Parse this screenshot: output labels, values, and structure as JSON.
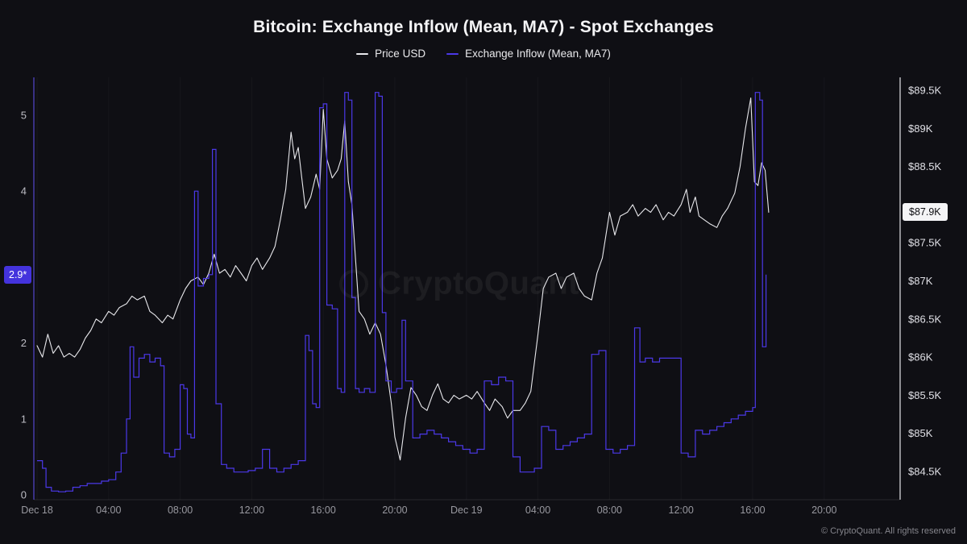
{
  "page": {
    "title": "Bitcoin: Exchange Inflow (Mean, MA7) - Spot Exchanges",
    "watermark": "CryptoQuant",
    "copyright": "© CryptoQuant. All rights reserved",
    "background": "#0f0f14"
  },
  "legend": {
    "items": [
      {
        "label": "Price USD",
        "color": "#e8e8ec"
      },
      {
        "label": "Exchange Inflow (Mean, MA7)",
        "color": "#4b38e8"
      }
    ]
  },
  "chart_data": {
    "type": "line",
    "title": "Bitcoin: Exchange Inflow (Mean, MA7) - Spot Exchanges",
    "grid": "off",
    "legend_position": "top-center",
    "x_axis": {
      "unit": "hours since Dec 18 00:00",
      "range": [
        0,
        48.2
      ],
      "ticks": [
        {
          "t": 0,
          "label": "Dec 18"
        },
        {
          "t": 4,
          "label": "04:00"
        },
        {
          "t": 8,
          "label": "08:00"
        },
        {
          "t": 12,
          "label": "12:00"
        },
        {
          "t": 16,
          "label": "16:00"
        },
        {
          "t": 20,
          "label": "20:00"
        },
        {
          "t": 24,
          "label": "Dec 19"
        },
        {
          "t": 28,
          "label": "04:00"
        },
        {
          "t": 32,
          "label": "08:00"
        },
        {
          "t": 36,
          "label": "12:00"
        },
        {
          "t": 40,
          "label": "16:00"
        },
        {
          "t": 44,
          "label": "20:00"
        }
      ]
    },
    "left_axis": {
      "title": "Exchange Inflow (Mean, MA7)",
      "range": [
        0,
        5.5
      ],
      "ticks": [
        0,
        1,
        2,
        4,
        5
      ],
      "current_value": 2.9,
      "current_label": "2.9*",
      "badge_color": "#4433dd"
    },
    "right_axis": {
      "title": "Price USD",
      "range_kusd": [
        84.3,
        89.7
      ],
      "ticks": [
        {
          "v": 84.5,
          "label": "$84.5K"
        },
        {
          "v": 85.0,
          "label": "$85K"
        },
        {
          "v": 85.5,
          "label": "$85.5K"
        },
        {
          "v": 86.0,
          "label": "$86K"
        },
        {
          "v": 86.5,
          "label": "$86.5K"
        },
        {
          "v": 87.0,
          "label": "$87K"
        },
        {
          "v": 87.5,
          "label": "$87.5K"
        },
        {
          "v": 88.5,
          "label": "$88.5K"
        },
        {
          "v": 89.0,
          "label": "$89K"
        },
        {
          "v": 89.5,
          "label": "$89.5K"
        }
      ],
      "current_value": 87.9,
      "current_label": "$87.9K"
    },
    "series": [
      {
        "name": "Price USD",
        "axis": "right",
        "unit": "kUSD",
        "color": "#e8e8ec",
        "style": "line",
        "points": [
          [
            0,
            86.15
          ],
          [
            0.3,
            86.0
          ],
          [
            0.6,
            86.3
          ],
          [
            0.9,
            86.05
          ],
          [
            1.2,
            86.15
          ],
          [
            1.5,
            86.0
          ],
          [
            1.8,
            86.05
          ],
          [
            2.1,
            86.0
          ],
          [
            2.4,
            86.1
          ],
          [
            2.7,
            86.25
          ],
          [
            3.0,
            86.35
          ],
          [
            3.3,
            86.5
          ],
          [
            3.6,
            86.45
          ],
          [
            4.0,
            86.6
          ],
          [
            4.3,
            86.55
          ],
          [
            4.6,
            86.65
          ],
          [
            5.0,
            86.7
          ],
          [
            5.3,
            86.8
          ],
          [
            5.6,
            86.75
          ],
          [
            6.0,
            86.8
          ],
          [
            6.3,
            86.6
          ],
          [
            6.6,
            86.55
          ],
          [
            7.0,
            86.45
          ],
          [
            7.3,
            86.55
          ],
          [
            7.6,
            86.5
          ],
          [
            8.0,
            86.75
          ],
          [
            8.3,
            86.9
          ],
          [
            8.6,
            87.0
          ],
          [
            9.0,
            87.05
          ],
          [
            9.3,
            86.95
          ],
          [
            9.6,
            87.1
          ],
          [
            9.9,
            87.35
          ],
          [
            10.2,
            87.1
          ],
          [
            10.5,
            87.15
          ],
          [
            10.8,
            87.05
          ],
          [
            11.1,
            87.2
          ],
          [
            11.4,
            87.1
          ],
          [
            11.7,
            87.0
          ],
          [
            12.0,
            87.2
          ],
          [
            12.3,
            87.3
          ],
          [
            12.6,
            87.15
          ],
          [
            13.0,
            87.3
          ],
          [
            13.3,
            87.45
          ],
          [
            13.6,
            87.8
          ],
          [
            13.9,
            88.2
          ],
          [
            14.2,
            88.95
          ],
          [
            14.4,
            88.6
          ],
          [
            14.6,
            88.75
          ],
          [
            14.8,
            88.35
          ],
          [
            15.0,
            87.95
          ],
          [
            15.3,
            88.1
          ],
          [
            15.6,
            88.4
          ],
          [
            15.8,
            88.2
          ],
          [
            16.0,
            89.25
          ],
          [
            16.2,
            88.6
          ],
          [
            16.5,
            88.35
          ],
          [
            16.8,
            88.45
          ],
          [
            17.0,
            88.6
          ],
          [
            17.2,
            89.1
          ],
          [
            17.4,
            88.3
          ],
          [
            17.6,
            88.0
          ],
          [
            17.8,
            87.3
          ],
          [
            18.0,
            86.6
          ],
          [
            18.3,
            86.5
          ],
          [
            18.6,
            86.3
          ],
          [
            18.9,
            86.45
          ],
          [
            19.2,
            86.3
          ],
          [
            19.5,
            85.9
          ],
          [
            19.8,
            85.4
          ],
          [
            20.0,
            84.95
          ],
          [
            20.3,
            84.65
          ],
          [
            20.6,
            85.2
          ],
          [
            20.9,
            85.6
          ],
          [
            21.2,
            85.5
          ],
          [
            21.5,
            85.35
          ],
          [
            21.8,
            85.3
          ],
          [
            22.1,
            85.5
          ],
          [
            22.4,
            85.65
          ],
          [
            22.7,
            85.45
          ],
          [
            23.0,
            85.4
          ],
          [
            23.3,
            85.5
          ],
          [
            23.6,
            85.45
          ],
          [
            24.0,
            85.5
          ],
          [
            24.3,
            85.45
          ],
          [
            24.6,
            85.55
          ],
          [
            25.0,
            85.4
          ],
          [
            25.3,
            85.3
          ],
          [
            25.6,
            85.45
          ],
          [
            26.0,
            85.35
          ],
          [
            26.3,
            85.2
          ],
          [
            26.6,
            85.3
          ],
          [
            27.0,
            85.3
          ],
          [
            27.3,
            85.4
          ],
          [
            27.6,
            85.55
          ],
          [
            28.0,
            86.3
          ],
          [
            28.3,
            86.9
          ],
          [
            28.6,
            87.05
          ],
          [
            29.0,
            87.1
          ],
          [
            29.3,
            86.9
          ],
          [
            29.6,
            87.05
          ],
          [
            30.0,
            87.1
          ],
          [
            30.3,
            86.9
          ],
          [
            30.6,
            86.8
          ],
          [
            31.0,
            86.75
          ],
          [
            31.3,
            87.1
          ],
          [
            31.6,
            87.3
          ],
          [
            32.0,
            87.9
          ],
          [
            32.3,
            87.6
          ],
          [
            32.6,
            87.85
          ],
          [
            33.0,
            87.9
          ],
          [
            33.3,
            88.0
          ],
          [
            33.6,
            87.85
          ],
          [
            34.0,
            87.95
          ],
          [
            34.3,
            87.9
          ],
          [
            34.6,
            88.0
          ],
          [
            35.0,
            87.8
          ],
          [
            35.3,
            87.9
          ],
          [
            35.6,
            87.85
          ],
          [
            36.0,
            88.0
          ],
          [
            36.3,
            88.2
          ],
          [
            36.5,
            87.9
          ],
          [
            36.8,
            88.1
          ],
          [
            37.0,
            87.85
          ],
          [
            37.3,
            87.8
          ],
          [
            37.6,
            87.75
          ],
          [
            38.0,
            87.7
          ],
          [
            38.3,
            87.85
          ],
          [
            38.6,
            87.95
          ],
          [
            39.0,
            88.15
          ],
          [
            39.3,
            88.5
          ],
          [
            39.6,
            89.0
          ],
          [
            39.9,
            89.4
          ],
          [
            40.1,
            88.3
          ],
          [
            40.3,
            88.25
          ],
          [
            40.5,
            88.55
          ],
          [
            40.7,
            88.45
          ],
          [
            40.9,
            87.9
          ]
        ]
      },
      {
        "name": "Exchange Inflow (Mean, MA7)",
        "axis": "left",
        "unit": "BTC",
        "color": "#4b38e8",
        "style": "step",
        "points": [
          [
            0,
            0.45
          ],
          [
            0.3,
            0.35
          ],
          [
            0.5,
            0.1
          ],
          [
            0.8,
            0.05
          ],
          [
            1.2,
            0.04
          ],
          [
            1.6,
            0.05
          ],
          [
            2.0,
            0.1
          ],
          [
            2.4,
            0.12
          ],
          [
            2.8,
            0.15
          ],
          [
            3.2,
            0.15
          ],
          [
            3.6,
            0.18
          ],
          [
            4.0,
            0.2
          ],
          [
            4.4,
            0.3
          ],
          [
            4.7,
            0.55
          ],
          [
            5.0,
            1.0
          ],
          [
            5.2,
            1.95
          ],
          [
            5.4,
            1.55
          ],
          [
            5.7,
            1.8
          ],
          [
            6.0,
            1.85
          ],
          [
            6.3,
            1.75
          ],
          [
            6.6,
            1.8
          ],
          [
            6.9,
            1.7
          ],
          [
            7.1,
            0.55
          ],
          [
            7.4,
            0.5
          ],
          [
            7.7,
            0.6
          ],
          [
            8.0,
            1.45
          ],
          [
            8.2,
            1.4
          ],
          [
            8.4,
            0.8
          ],
          [
            8.6,
            0.75
          ],
          [
            8.8,
            4.0
          ],
          [
            9.0,
            2.75
          ],
          [
            9.3,
            2.85
          ],
          [
            9.6,
            2.9
          ],
          [
            9.8,
            4.55
          ],
          [
            10.0,
            1.2
          ],
          [
            10.3,
            0.4
          ],
          [
            10.6,
            0.35
          ],
          [
            11.0,
            0.3
          ],
          [
            11.4,
            0.3
          ],
          [
            11.8,
            0.32
          ],
          [
            12.2,
            0.35
          ],
          [
            12.6,
            0.6
          ],
          [
            13.0,
            0.35
          ],
          [
            13.4,
            0.3
          ],
          [
            13.8,
            0.35
          ],
          [
            14.2,
            0.4
          ],
          [
            14.6,
            0.45
          ],
          [
            15.0,
            2.1
          ],
          [
            15.2,
            1.9
          ],
          [
            15.4,
            1.2
          ],
          [
            15.6,
            1.15
          ],
          [
            15.8,
            5.1
          ],
          [
            16.0,
            5.15
          ],
          [
            16.2,
            2.5
          ],
          [
            16.5,
            2.45
          ],
          [
            16.8,
            1.4
          ],
          [
            17.0,
            1.35
          ],
          [
            17.2,
            5.3
          ],
          [
            17.4,
            5.2
          ],
          [
            17.6,
            2.6
          ],
          [
            17.8,
            1.4
          ],
          [
            18.0,
            1.35
          ],
          [
            18.3,
            1.4
          ],
          [
            18.6,
            1.35
          ],
          [
            18.9,
            5.3
          ],
          [
            19.1,
            5.25
          ],
          [
            19.3,
            2.4
          ],
          [
            19.5,
            1.5
          ],
          [
            19.8,
            1.35
          ],
          [
            20.1,
            1.4
          ],
          [
            20.4,
            2.3
          ],
          [
            20.6,
            1.5
          ],
          [
            21.0,
            0.75
          ],
          [
            21.4,
            0.8
          ],
          [
            21.8,
            0.85
          ],
          [
            22.2,
            0.8
          ],
          [
            22.6,
            0.75
          ],
          [
            23.0,
            0.7
          ],
          [
            23.4,
            0.65
          ],
          [
            23.8,
            0.6
          ],
          [
            24.2,
            0.55
          ],
          [
            24.6,
            0.6
          ],
          [
            25.0,
            1.5
          ],
          [
            25.4,
            1.45
          ],
          [
            25.8,
            1.55
          ],
          [
            26.2,
            1.5
          ],
          [
            26.6,
            0.5
          ],
          [
            27.0,
            0.3
          ],
          [
            27.4,
            0.3
          ],
          [
            27.8,
            0.35
          ],
          [
            28.2,
            0.9
          ],
          [
            28.6,
            0.85
          ],
          [
            29.0,
            0.6
          ],
          [
            29.4,
            0.65
          ],
          [
            29.8,
            0.7
          ],
          [
            30.2,
            0.75
          ],
          [
            30.6,
            0.8
          ],
          [
            31.0,
            1.85
          ],
          [
            31.4,
            1.9
          ],
          [
            31.8,
            0.6
          ],
          [
            32.2,
            0.55
          ],
          [
            32.6,
            0.6
          ],
          [
            33.0,
            0.65
          ],
          [
            33.4,
            2.2
          ],
          [
            33.7,
            1.75
          ],
          [
            34.0,
            1.8
          ],
          [
            34.4,
            1.75
          ],
          [
            34.8,
            1.8
          ],
          [
            35.2,
            1.8
          ],
          [
            35.6,
            1.8
          ],
          [
            36.0,
            0.55
          ],
          [
            36.4,
            0.5
          ],
          [
            36.8,
            0.85
          ],
          [
            37.2,
            0.8
          ],
          [
            37.6,
            0.85
          ],
          [
            38.0,
            0.9
          ],
          [
            38.4,
            0.95
          ],
          [
            38.8,
            1.0
          ],
          [
            39.2,
            1.05
          ],
          [
            39.6,
            1.1
          ],
          [
            40.0,
            1.15
          ],
          [
            40.15,
            5.3
          ],
          [
            40.4,
            5.2
          ],
          [
            40.55,
            1.95
          ],
          [
            40.75,
            2.9
          ]
        ]
      }
    ]
  }
}
